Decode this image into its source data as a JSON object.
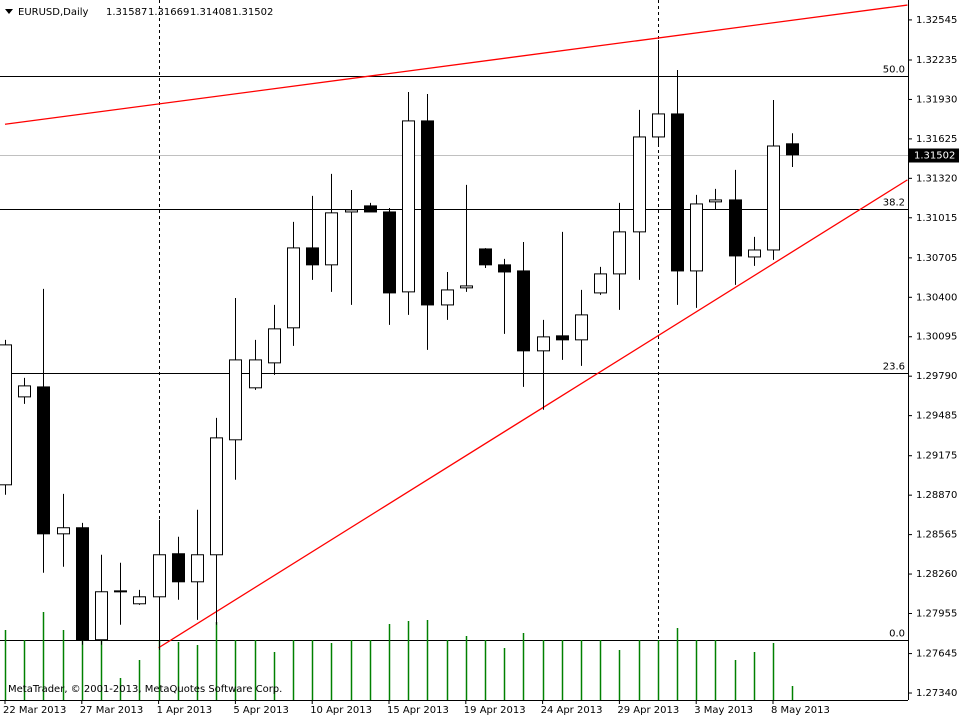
{
  "chart_data": {
    "type": "candlestick",
    "title": "EURUSD,Daily",
    "footer": "MetaTrader, © 2001-2013, MetaQuotes Software Corp.",
    "categories": [
      "22 Mar 2013",
      null,
      null,
      null,
      "27 Mar 2013",
      null,
      null,
      null,
      "1 Apr 2013",
      null,
      null,
      null,
      "5 Apr 2013",
      null,
      null,
      null,
      "10 Apr 2013",
      null,
      null,
      null,
      "15 Apr 2013",
      null,
      null,
      null,
      "19 Apr 2013",
      null,
      null,
      null,
      "24 Apr 2013",
      null,
      null,
      null,
      "29 Apr 2013",
      null,
      null,
      null,
      "3 May 2013",
      null,
      null,
      null,
      "8 May 2013",
      null
    ],
    "open": [
      1.2895,
      1.2963,
      1.29707,
      1.28571,
      1.28618,
      1.27752,
      1.28123,
      1.2803,
      1.28084,
      1.28417,
      1.282,
      1.28409,
      1.29298,
      1.297,
      1.29893,
      1.30164,
      1.30782,
      1.30651,
      1.3106,
      1.31107,
      1.3106,
      1.30442,
      1.31764,
      1.30341,
      1.30473,
      1.30774,
      1.30651,
      1.30604,
      1.29986,
      1.30102,
      1.30071,
      1.30434,
      1.30581,
      1.30906,
      1.3164,
      1.31818,
      1.30604,
      1.31138,
      1.31153,
      1.30712,
      1.30766,
      1.31587
    ],
    "high": [
      1.30071,
      1.29777,
      1.30465,
      1.2888,
      1.28656,
      1.28409,
      1.28347,
      1.28138,
      1.28679,
      1.28548,
      1.28757,
      1.29468,
      1.30395,
      1.30071,
      1.30341,
      1.30983,
      1.31184,
      1.31354,
      1.3123,
      1.3113,
      1.31091,
      1.31988,
      1.31972,
      1.30596,
      1.31269,
      1.3078,
      1.30697,
      1.30828,
      1.30225,
      1.30906,
      1.30457,
      1.30635,
      1.3113,
      1.31849,
      1.3239,
      1.32158,
      1.31192,
      1.31238,
      1.31385,
      1.30867,
      1.31926,
      1.31669
    ],
    "low": [
      1.28873,
      1.29576,
      1.2827,
      1.28316,
      1.27713,
      1.27713,
      1.27868,
      1.28022,
      1.27674,
      1.28061,
      1.27906,
      1.27868,
      1.28989,
      1.29684,
      1.298,
      1.30024,
      1.30535,
      1.30442,
      1.30341,
      1.31076,
      1.30187,
      1.30264,
      1.29993,
      1.30225,
      1.30442,
      1.30627,
      1.30117,
      1.29707,
      1.2953,
      1.29916,
      1.2987,
      1.30419,
      1.30303,
      1.30535,
      1.3157,
      1.30341,
      1.30318,
      1.31076,
      1.30496,
      1.30643,
      1.30689,
      1.31408
    ],
    "close": [
      1.30032,
      1.29715,
      1.28571,
      1.28618,
      1.27752,
      1.28123,
      1.2813,
      1.28084,
      1.28409,
      1.282,
      1.28409,
      1.29313,
      1.29916,
      1.29916,
      1.30156,
      1.30782,
      1.30651,
      1.31053,
      1.31076,
      1.3106,
      1.30434,
      1.31764,
      1.30341,
      1.30457,
      1.30488,
      1.30651,
      1.30596,
      1.29986,
      1.30094,
      1.30071,
      1.30264,
      1.30581,
      1.30906,
      1.3164,
      1.31818,
      1.30604,
      1.31122,
      1.31153,
      1.3072,
      1.30766,
      1.3157,
      1.31502
    ],
    "volume": [
      70,
      60,
      88,
      70,
      72,
      60,
      22,
      40,
      60,
      58,
      55,
      78,
      60,
      60,
      48,
      60,
      60,
      57,
      60,
      60,
      76,
      79,
      80,
      60,
      64,
      60,
      52,
      67,
      60,
      60,
      60,
      60,
      50,
      60,
      60,
      72,
      60,
      60,
      40,
      48,
      57,
      14
    ],
    "volume_lim": [
      0,
      100
    ],
    "ylim": [
      1.27286,
      1.32699
    ],
    "yticks": [
      1.32545,
      1.32235,
      {
        "value": 1.3193,
        "label": "1.31930"
      },
      1.31625,
      {
        "value": 1.3132,
        "label": "1.31320"
      },
      1.31015,
      1.30705,
      {
        "value": 1.304,
        "label": "1.30400"
      },
      1.30095,
      {
        "value": 1.2979,
        "label": "1.29790"
      },
      1.29485,
      1.29175,
      {
        "value": 1.2887,
        "label": "1.28870"
      },
      1.28565,
      {
        "value": 1.2826,
        "label": "1.28260"
      },
      1.27955,
      1.27645,
      {
        "value": 1.2734,
        "label": "1.27340"
      }
    ],
    "fibo": [
      {
        "label": "50.0",
        "value": 1.32112
      },
      {
        "label": "38.2",
        "value": 1.31083
      },
      {
        "label": "23.6",
        "value": 1.29816
      },
      {
        "label": "0.0",
        "value": 1.27752
      }
    ],
    "trendlines": [
      {
        "x": [
          0,
          47
        ],
        "values": [
          1.31738,
          1.3266
        ]
      },
      {
        "x": [
          8,
          47
        ],
        "values": [
          1.2769,
          1.31308
        ]
      }
    ],
    "vlines": [
      8,
      34
    ],
    "bull_color": "#ffffff",
    "bear_color": "#000000",
    "volume_color": "#008000",
    "trendline_color": "#ff0000"
  }
}
